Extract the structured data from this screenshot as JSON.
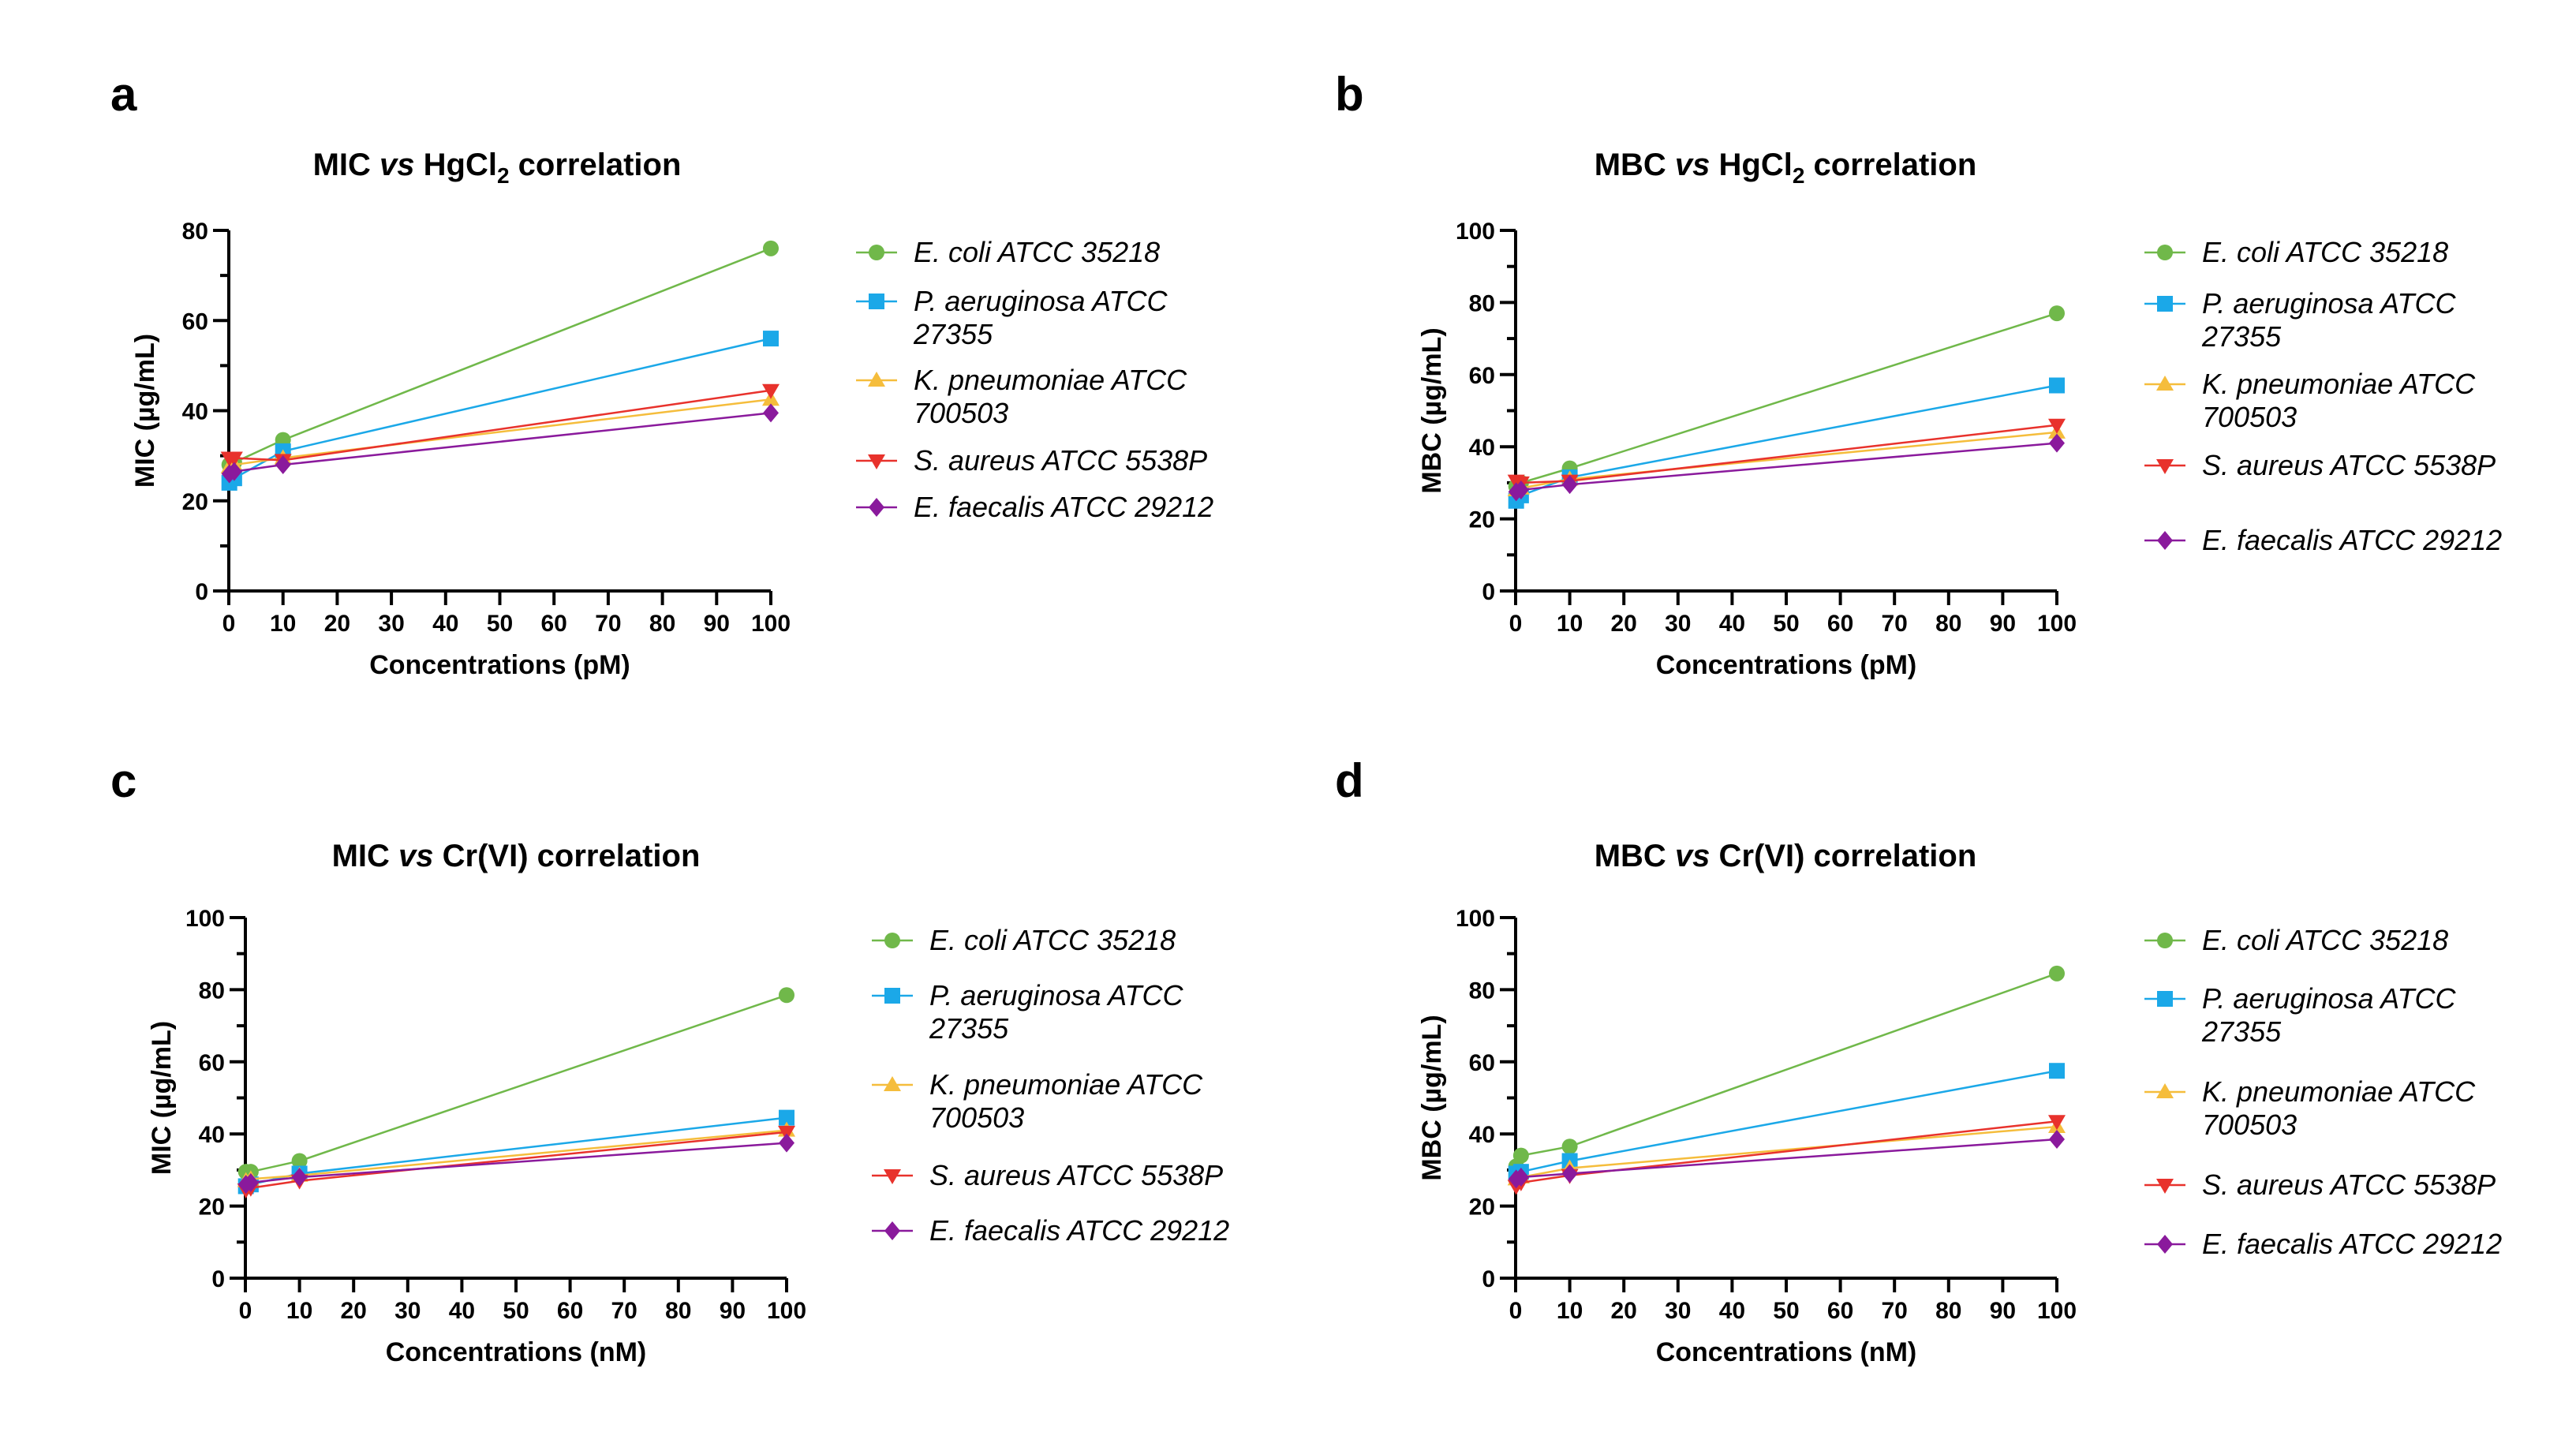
{
  "series_styles": [
    {
      "name": "E. coli ATCC 35218",
      "color": "#70b84a",
      "marker": "circle"
    },
    {
      "name": "P. aeruginosa ATCC 27355",
      "color": "#1ba8e8",
      "marker": "square"
    },
    {
      "name": "K. pneumoniae ATCC 700503",
      "color": "#f5bd3c",
      "marker": "triangle-up"
    },
    {
      "name": "S. aureus ATCC 5538P",
      "color": "#e8322c",
      "marker": "triangle-down"
    },
    {
      "name": "E. faecalis ATCC 29212",
      "color": "#8a1a9c",
      "marker": "diamond"
    }
  ],
  "chart_data": [
    {
      "panel": "a",
      "type": "line",
      "title_prefix": "MIC ",
      "title_italic": "vs",
      "title_mid": " HgCl",
      "title_sub": "2",
      "title_suffix": " correlation",
      "xlabel": "Concentrations (pM)",
      "ylabel": "MIC (µg/mL)",
      "xlim": [
        0,
        100
      ],
      "ylim": [
        0,
        80
      ],
      "xticks": [
        0,
        10,
        20,
        30,
        40,
        50,
        60,
        70,
        80,
        90,
        100
      ],
      "yticks": [
        0,
        20,
        40,
        60,
        80
      ],
      "legend_lines": [
        [
          "E. coli ATCC 35218"
        ],
        [
          "P. aeruginosa ATCC",
          "27355"
        ],
        [
          "K. pneumoniae ATCC",
          "700503"
        ],
        [
          "S. aureus ATCC 5538P"
        ],
        [
          "E. faecalis ATCC 29212"
        ]
      ],
      "x": [
        0.1,
        1,
        10,
        100
      ],
      "series": [
        {
          "name": "E. coli ATCC 35218",
          "values": [
            28,
            28.5,
            33.5,
            76
          ]
        },
        {
          "name": "P. aeruginosa ATCC 27355",
          "values": [
            24,
            25,
            31,
            56
          ]
        },
        {
          "name": "K. pneumoniae ATCC 700503",
          "values": [
            27.5,
            28,
            29.5,
            42.5
          ]
        },
        {
          "name": "S. aureus ATCC 5538P",
          "values": [
            29.5,
            29.5,
            29,
            44.5
          ]
        },
        {
          "name": "E. faecalis ATCC 29212",
          "values": [
            26,
            26.5,
            28,
            39.5
          ]
        }
      ]
    },
    {
      "panel": "b",
      "type": "line",
      "title_prefix": "MBC ",
      "title_italic": "vs",
      "title_mid": " HgCl",
      "title_sub": "2",
      "title_suffix": " correlation",
      "xlabel": "Concentrations (pM)",
      "ylabel": "MBC (µg/mL)",
      "xlim": [
        0,
        100
      ],
      "ylim": [
        0,
        100
      ],
      "xticks": [
        0,
        10,
        20,
        30,
        40,
        50,
        60,
        70,
        80,
        90,
        100
      ],
      "yticks": [
        0,
        20,
        40,
        60,
        80,
        100
      ],
      "legend_lines": [
        [
          "E. coli ATCC 35218"
        ],
        [
          "P. aeruginosa ATCC",
          "27355"
        ],
        [
          "K. pneumoniae ATCC",
          "700503"
        ],
        [
          "S. aureus ATCC 5538P"
        ],
        [
          "E. faecalis ATCC 29212"
        ]
      ],
      "x": [
        0.1,
        1,
        10,
        100
      ],
      "series": [
        {
          "name": "E. coli ATCC 35218",
          "values": [
            29,
            30,
            34,
            77
          ]
        },
        {
          "name": "P. aeruginosa ATCC 27355",
          "values": [
            25,
            26.5,
            31.5,
            57
          ]
        },
        {
          "name": "K. pneumoniae ATCC 700503",
          "values": [
            28,
            28.5,
            31,
            44
          ]
        },
        {
          "name": "S. aureus ATCC 5538P",
          "values": [
            30.5,
            30,
            30.5,
            46
          ]
        },
        {
          "name": "E. faecalis ATCC 29212",
          "values": [
            27.5,
            28,
            29.5,
            41
          ]
        }
      ]
    },
    {
      "panel": "c",
      "type": "line",
      "title_prefix": "MIC ",
      "title_italic": "vs",
      "title_mid": " Cr(VI) correlation",
      "title_sub": "",
      "title_suffix": "",
      "xlabel": "Concentrations (nM)",
      "ylabel": "MIC (µg/mL)",
      "xlim": [
        0,
        100
      ],
      "ylim": [
        0,
        100
      ],
      "xticks": [
        0,
        10,
        20,
        30,
        40,
        50,
        60,
        70,
        80,
        90,
        100
      ],
      "yticks": [
        0,
        20,
        40,
        60,
        80,
        100
      ],
      "legend_lines": [
        [
          "E. coli ATCC 35218"
        ],
        [
          "P. aeruginosa ATCC",
          "27355"
        ],
        [
          "K. pneumoniae ATCC",
          "700503"
        ],
        [
          "S. aureus ATCC 5538P"
        ],
        [
          "E. faecalis ATCC 29212"
        ]
      ],
      "x": [
        0.1,
        1,
        10,
        100
      ],
      "series": [
        {
          "name": "E. coli ATCC 35218",
          "values": [
            29.5,
            29.5,
            32.5,
            78.5
          ]
        },
        {
          "name": "P. aeruginosa ATCC 27355",
          "values": [
            25.5,
            26,
            29,
            44.5
          ]
        },
        {
          "name": "K. pneumoniae ATCC 700503",
          "values": [
            27,
            27.5,
            28.5,
            41
          ]
        },
        {
          "name": "S. aureus ATCC 5538P",
          "values": [
            24.5,
            25,
            27,
            40.5
          ]
        },
        {
          "name": "E. faecalis ATCC 29212",
          "values": [
            26,
            26.5,
            28,
            37.5
          ]
        }
      ]
    },
    {
      "panel": "d",
      "type": "line",
      "title_prefix": "MBC ",
      "title_italic": "vs",
      "title_mid": " Cr(VI) correlation",
      "title_sub": "",
      "title_suffix": "",
      "xlabel": "Concentrations (nM)",
      "ylabel": "MBC (µg/mL)",
      "xlim": [
        0,
        100
      ],
      "ylim": [
        0,
        100
      ],
      "xticks": [
        0,
        10,
        20,
        30,
        40,
        50,
        60,
        70,
        80,
        90,
        100
      ],
      "yticks": [
        0,
        20,
        40,
        60,
        80,
        100
      ],
      "legend_lines": [
        [
          "E. coli ATCC 35218"
        ],
        [
          "P. aeruginosa ATCC",
          "27355"
        ],
        [
          "K. pneumoniae ATCC",
          "700503"
        ],
        [
          "S. aureus ATCC 5538P"
        ],
        [
          "E. faecalis ATCC 29212"
        ]
      ],
      "x": [
        0.1,
        1,
        10,
        100
      ],
      "series": [
        {
          "name": "E. coli ATCC 35218",
          "values": [
            31,
            34,
            36.5,
            84.5
          ]
        },
        {
          "name": "P. aeruginosa ATCC 27355",
          "values": [
            29,
            29.5,
            32.5,
            57.5
          ]
        },
        {
          "name": "K. pneumoniae ATCC 700503",
          "values": [
            27.5,
            28,
            30.5,
            42
          ]
        },
        {
          "name": "S. aureus ATCC 5538P",
          "values": [
            25.5,
            26.5,
            28.5,
            43.5
          ]
        },
        {
          "name": "E. faecalis ATCC 29212",
          "values": [
            27.5,
            28,
            29,
            38.5
          ]
        }
      ]
    }
  ]
}
